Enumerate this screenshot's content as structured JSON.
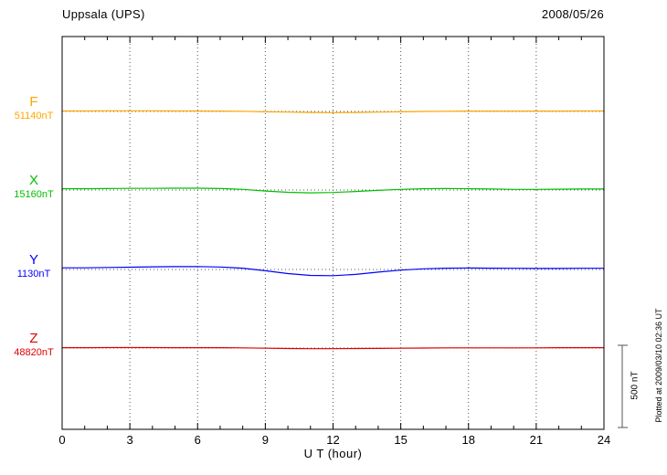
{
  "page": {
    "title": "Uppsala (UPS)",
    "date": "2008/05/26",
    "plotted_at": "Plotted at 2009/03/10 02:36 UT"
  },
  "chart_data": {
    "type": "line",
    "title": "Uppsala (UPS)",
    "date": "2008/05/26",
    "xlabel": "U T (hour)",
    "xlim": [
      0,
      24
    ],
    "x_ticks": [
      0,
      3,
      6,
      9,
      12,
      15,
      18,
      21,
      24
    ],
    "x_step_hours": 1,
    "grid": "vertical-dotted-every-3h-plus-dotted-baselines",
    "scale_bar_label": "500 nT",
    "scale_bar_nT": 500,
    "plotted_at": "Plotted at 2009/03/10 02:36 UT",
    "series": [
      {
        "name": "F",
        "baseline_label": "51140nT",
        "baseline_nT": 51140,
        "color": "#FFA500",
        "offsets_nT": [
          3,
          3,
          4,
          4,
          4,
          3,
          3,
          2,
          1,
          -2,
          -4,
          -6,
          -7,
          -6,
          -4,
          -2,
          0,
          1,
          2,
          2,
          2,
          2,
          2,
          3,
          3
        ]
      },
      {
        "name": "X",
        "baseline_label": "15160nT",
        "baseline_nT": 15160,
        "color": "#00C000",
        "offsets_nT": [
          8,
          8,
          9,
          10,
          10,
          11,
          11,
          9,
          4,
          -6,
          -14,
          -17,
          -15,
          -9,
          -2,
          4,
          8,
          9,
          8,
          6,
          4,
          4,
          5,
          6,
          6
        ]
      },
      {
        "name": "Y",
        "baseline_label": "1130nT",
        "baseline_nT": 1130,
        "color": "#0000FF",
        "offsets_nT": [
          10,
          10,
          12,
          14,
          16,
          17,
          18,
          15,
          8,
          -8,
          -25,
          -36,
          -38,
          -30,
          -16,
          -4,
          4,
          8,
          9,
          8,
          7,
          6,
          6,
          7,
          7
        ]
      },
      {
        "name": "Z",
        "baseline_label": "48820nT",
        "baseline_nT": 48820,
        "color": "#DD0000",
        "offsets_nT": [
          2,
          2,
          3,
          3,
          3,
          2,
          2,
          2,
          1,
          -1,
          -3,
          -4,
          -4,
          -3,
          -2,
          -1,
          0,
          1,
          1,
          1,
          1,
          1,
          2,
          2,
          2
        ]
      }
    ]
  }
}
